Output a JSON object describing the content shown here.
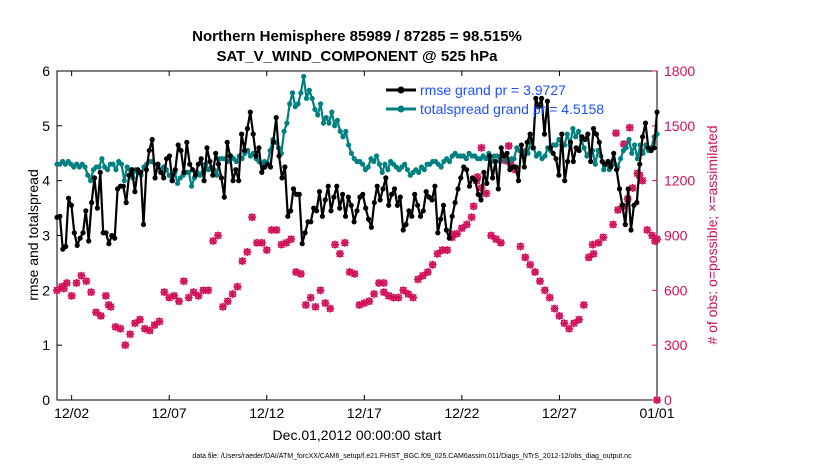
{
  "chart_data": {
    "type": "line",
    "title": "Northern Hemisphere 85989 / 87285 = 98.515%",
    "subtitle": "SAT_V_WIND_COMPONENT @ 525 hPa",
    "xlabel": "Dec.01,2012 00:00:00 start",
    "ylabel_left": "rmse and totalspread",
    "ylabel_right": "# of obs: o=possible; ×=assimilated",
    "footnote": "data file: /Users/raeder/DAI/ATM_forcXX/CAM6_setup/f.e21.FHIST_BGC.f09_025.CAM6assim.011/Diags_NTrS_2012-12/obs_diag_output.nc",
    "x_ticks": [
      "12/02",
      "12/07",
      "12/12",
      "12/17",
      "12/22",
      "12/27",
      "01/01"
    ],
    "x_tick_days": [
      1,
      6,
      11,
      16,
      21,
      26,
      31
    ],
    "x_range_days": [
      0.25,
      31.0
    ],
    "ylim_left": [
      0,
      6
    ],
    "y_ticks_left": [
      "0",
      "1",
      "2",
      "3",
      "4",
      "5",
      "6"
    ],
    "ylim_right": [
      0,
      1800
    ],
    "y_ticks_right": [
      "0",
      "300",
      "600",
      "900",
      "1200",
      "1500",
      "1800"
    ],
    "colors": {
      "rmse": "#000000",
      "spread": "#008080",
      "obs": "#d0105a",
      "legend_text": "#1f4fff"
    },
    "series": [
      {
        "name": "rmse grand pr = 3.9727",
        "axis": "left",
        "values": [
          3.33,
          3.35,
          2.75,
          2.8,
          3.68,
          3.55,
          3.05,
          2.82,
          2.95,
          3.05,
          3.45,
          2.9,
          3.6,
          4.05,
          3.5,
          4.15,
          3.05,
          3.05,
          2.85,
          3.0,
          2.95,
          3.85,
          3.9,
          3.9,
          3.6,
          4.1,
          4.2,
          3.8,
          4.2,
          4.15,
          3.2,
          4.2,
          4.55,
          4.75,
          4.05,
          4.3,
          4.15,
          4.05,
          4.4,
          4.45,
          4.0,
          4.2,
          4.65,
          4.55,
          4.15,
          4.7,
          4.3,
          4.2,
          4.1,
          4.3,
          4.4,
          4.0,
          4.6,
          4.35,
          4.1,
          4.5,
          4.3,
          4.05,
          3.7,
          4.7,
          4.45,
          4.0,
          4.2,
          4.0,
          4.85,
          4.55,
          4.95,
          5.25,
          4.85,
          4.45,
          4.6,
          4.15,
          4.25,
          4.3,
          4.25,
          4.7,
          5.15,
          4.45,
          4.05,
          4.25,
          3.35,
          3.45,
          3.85,
          3.75,
          3.75,
          2.85,
          3.05,
          3.25,
          3.25,
          3.5,
          3.45,
          3.8,
          3.35,
          3.65,
          3.9,
          3.45,
          3.7,
          3.9,
          3.5,
          3.75,
          3.35,
          3.7,
          3.55,
          3.25,
          3.45,
          3.7,
          3.75,
          3.5,
          3.3,
          3.15,
          3.6,
          3.9,
          3.65,
          3.85,
          4.05,
          3.55,
          3.75,
          3.85,
          3.55,
          3.7,
          3.1,
          3.2,
          3.45,
          3.35,
          3.75,
          3.55,
          3.35,
          3.45,
          3.8,
          3.7,
          3.65,
          3.9,
          3.05,
          3.3,
          3.55,
          3.1,
          2.95,
          3.35,
          3.6,
          3.85,
          4.05,
          4.25,
          4.2,
          3.9,
          4.05,
          4.0,
          3.75,
          3.65,
          4.15,
          3.95,
          4.45,
          4.05,
          4.35,
          3.85,
          4.6,
          4.45,
          4.5,
          4.2,
          4.25,
          4.25,
          4.0,
          4.65,
          4.25,
          4.7,
          4.85,
          4.6,
          5.5,
          5.35,
          5.5,
          4.85,
          5.45,
          4.6,
          4.5,
          4.4,
          4.1,
          4.85,
          4.0,
          4.35,
          4.7,
          4.35,
          4.6,
          4.55,
          4.8,
          4.75,
          4.85,
          4.35,
          4.95,
          4.85,
          4.7,
          4.35,
          4.3,
          4.35,
          4.25,
          4.5,
          4.2,
          3.85,
          3.55,
          3.2,
          3.85,
          3.1,
          3.55,
          3.6,
          4.3,
          4.8,
          5.05,
          4.6,
          4.55,
          4.6,
          5.25
        ],
        "note": "points are evenly spaced in time (6-hourly) from 12/01 06Z to 01/01 00Z"
      },
      {
        "name": "totalspread grand pr = 4.5158",
        "axis": "left",
        "values": [
          4.3,
          4.3,
          4.35,
          4.3,
          4.35,
          4.3,
          4.25,
          4.3,
          4.25,
          4.3,
          4.25,
          4.1,
          4.0,
          4.2,
          4.25,
          4.25,
          4.4,
          4.25,
          4.2,
          4.3,
          4.3,
          4.2,
          4.35,
          4.3,
          4.0,
          4.25,
          4.2,
          4.05,
          4.2,
          4.15,
          4.1,
          4.25,
          4.3,
          4.35,
          4.35,
          4.3,
          4.3,
          4.2,
          4.25,
          4.2,
          4.1,
          4.0,
          4.15,
          3.95,
          4.05,
          4.1,
          4.15,
          4.15,
          3.9,
          4.05,
          4.15,
          4.1,
          4.15,
          4.3,
          4.2,
          4.25,
          4.2,
          4.1,
          4.4,
          4.4,
          4.4,
          4.35,
          4.45,
          4.4,
          4.35,
          4.45,
          4.4,
          4.5,
          4.55,
          4.45,
          4.5,
          4.4,
          4.35,
          4.3,
          4.35,
          4.3,
          4.55,
          4.75,
          4.7,
          4.6,
          4.5,
          4.9,
          5.05,
          5.4,
          5.6,
          5.35,
          5.4,
          5.6,
          5.9,
          5.5,
          5.65,
          5.5,
          5.3,
          5.2,
          5.4,
          5.05,
          5.15,
          5.05,
          5.25,
          5.0,
          5.1,
          4.9,
          4.8,
          4.9,
          4.65,
          4.5,
          4.4,
          4.35,
          4.35,
          4.3,
          4.2,
          4.25,
          4.4,
          4.35,
          4.45,
          4.3,
          4.15,
          4.3,
          4.2,
          4.35,
          4.3,
          4.25,
          4.2,
          4.25,
          4.3,
          4.2,
          4.1,
          4.15,
          4.2,
          4.15,
          4.25,
          4.2,
          4.3,
          4.3,
          4.35,
          4.35,
          4.3,
          4.25,
          4.35,
          4.4,
          4.35,
          4.45,
          4.5,
          4.45,
          4.45,
          4.45,
          4.4,
          4.5,
          4.45,
          4.45,
          4.4,
          4.4,
          4.45,
          4.4,
          4.5,
          4.35,
          4.45,
          4.45,
          4.35,
          4.45,
          4.4,
          4.35,
          4.4,
          4.4,
          4.6,
          4.55,
          4.45,
          4.55,
          4.5,
          4.75,
          4.6,
          4.45,
          4.5,
          4.4,
          4.45,
          4.6,
          4.55,
          4.65,
          4.65,
          4.75,
          4.65,
          4.65,
          4.85,
          4.65,
          4.95,
          4.8,
          4.9,
          4.75,
          4.6,
          4.45,
          4.5,
          4.55,
          4.3,
          4.55,
          4.45,
          4.2,
          4.3,
          4.2,
          4.35,
          4.3,
          4.25,
          4.4,
          4.55,
          4.6,
          4.75,
          4.5,
          4.65,
          4.4,
          4.65,
          4.5,
          4.65,
          4.55,
          4.6,
          4.8,
          4.85
        ],
        "note": "points are evenly spaced in time (6-hourly) from 12/01 06Z to 01/01 00Z"
      },
      {
        "name": "possible observations",
        "axis": "right",
        "marker": "o",
        "points": [
          [
            0.25,
            600
          ],
          [
            0.5,
            620
          ],
          [
            0.75,
            640
          ],
          [
            1.0,
            570
          ],
          [
            1.25,
            640
          ],
          [
            1.5,
            680
          ],
          [
            1.75,
            650
          ],
          [
            2.0,
            590
          ],
          [
            2.25,
            480
          ],
          [
            2.5,
            460
          ],
          [
            2.75,
            570
          ],
          [
            3.0,
            510
          ],
          [
            3.25,
            400
          ],
          [
            3.5,
            390
          ],
          [
            3.75,
            300
          ],
          [
            4.0,
            360
          ],
          [
            4.25,
            420
          ],
          [
            4.5,
            440
          ],
          [
            4.75,
            390
          ],
          [
            5.0,
            380
          ],
          [
            5.25,
            410
          ],
          [
            5.5,
            430
          ],
          [
            5.75,
            590
          ],
          [
            6.0,
            560
          ],
          [
            6.25,
            570
          ],
          [
            6.5,
            540
          ],
          [
            6.75,
            650
          ],
          [
            7.0,
            560
          ],
          [
            7.25,
            590
          ],
          [
            7.5,
            570
          ],
          [
            7.75,
            600
          ],
          [
            8.0,
            600
          ],
          [
            8.25,
            870
          ],
          [
            8.5,
            900
          ],
          [
            8.75,
            510
          ],
          [
            9.0,
            540
          ],
          [
            9.25,
            580
          ],
          [
            9.5,
            620
          ],
          [
            9.75,
            760
          ],
          [
            10.0,
            810
          ],
          [
            10.25,
            1000
          ],
          [
            10.5,
            860
          ],
          [
            10.75,
            860
          ],
          [
            11.0,
            820
          ],
          [
            11.25,
            930
          ],
          [
            11.5,
            930
          ],
          [
            11.75,
            850
          ],
          [
            12.0,
            860
          ],
          [
            12.25,
            880
          ],
          [
            12.5,
            700
          ],
          [
            12.75,
            690
          ],
          [
            13.0,
            520
          ],
          [
            13.25,
            560
          ],
          [
            13.5,
            510
          ],
          [
            13.75,
            600
          ],
          [
            14.0,
            530
          ],
          [
            14.25,
            500
          ],
          [
            14.5,
            850
          ],
          [
            14.75,
            800
          ],
          [
            15.0,
            860
          ],
          [
            15.25,
            700
          ],
          [
            15.5,
            690
          ],
          [
            15.75,
            520
          ],
          [
            16.0,
            530
          ],
          [
            16.25,
            540
          ],
          [
            16.5,
            580
          ],
          [
            16.75,
            640
          ],
          [
            17.0,
            590
          ],
          [
            17.25,
            570
          ],
          [
            17.5,
            560
          ],
          [
            17.75,
            560
          ],
          [
            18.0,
            600
          ],
          [
            18.25,
            580
          ],
          [
            18.5,
            560
          ],
          [
            18.75,
            660
          ],
          [
            19.0,
            680
          ],
          [
            19.25,
            700
          ],
          [
            19.5,
            740
          ],
          [
            19.75,
            800
          ],
          [
            20.0,
            820
          ],
          [
            20.25,
            820
          ],
          [
            20.5,
            890
          ],
          [
            20.75,
            910
          ],
          [
            21.0,
            940
          ],
          [
            21.25,
            960
          ],
          [
            21.5,
            1000
          ],
          [
            21.75,
            1200
          ],
          [
            22.0,
            1160
          ],
          [
            22.25,
            1130
          ],
          [
            22.5,
            900
          ],
          [
            22.75,
            880
          ],
          [
            23.0,
            860
          ],
          [
            23.25,
            1310
          ],
          [
            23.5,
            1290
          ],
          [
            23.75,
            1260
          ],
          [
            24.0,
            840
          ],
          [
            24.25,
            780
          ],
          [
            24.5,
            740
          ],
          [
            24.75,
            700
          ],
          [
            25.0,
            650
          ],
          [
            25.25,
            600
          ],
          [
            25.5,
            560
          ],
          [
            25.75,
            500
          ],
          [
            26.0,
            460
          ],
          [
            26.25,
            420
          ],
          [
            26.5,
            390
          ],
          [
            26.75,
            420
          ],
          [
            27.0,
            440
          ],
          [
            27.25,
            520
          ],
          [
            27.5,
            780
          ],
          [
            27.75,
            800
          ],
          [
            28.0,
            860
          ],
          [
            28.25,
            890
          ],
          [
            28.75,
            960
          ],
          [
            29.0,
            1040
          ],
          [
            29.25,
            1060
          ],
          [
            29.5,
            1100
          ],
          [
            29.75,
            1160
          ],
          [
            30.0,
            1240
          ],
          [
            30.25,
            1200
          ],
          [
            30.5,
            930
          ],
          [
            30.75,
            900
          ],
          [
            31.0,
            880
          ]
        ],
        "extra_points": [
          [
            0.6,
            610
          ],
          [
            2.9,
            520
          ],
          [
            17.0,
            640
          ],
          [
            20.5,
            905
          ],
          [
            21.6,
            1060
          ],
          [
            21.8,
            1220
          ],
          [
            22.0,
            1380
          ],
          [
            23.4,
            1390
          ],
          [
            27.7,
            850
          ],
          [
            28.9,
            1460
          ],
          [
            29.3,
            1400
          ],
          [
            29.6,
            1490
          ],
          [
            30.1,
            1230
          ],
          [
            30.9,
            870
          ],
          [
            31.0,
            0
          ]
        ]
      }
    ]
  }
}
